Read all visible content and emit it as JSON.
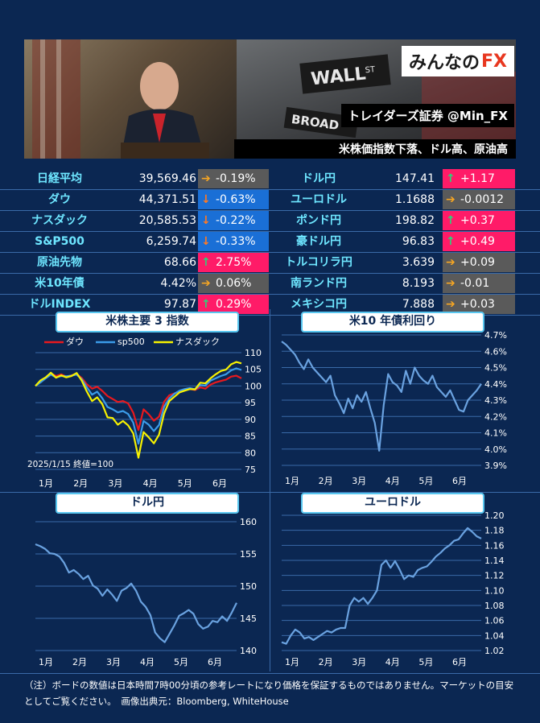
{
  "banner": {
    "logo_text": "みんなの",
    "logo_fx": "FX",
    "handle": "トレイダーズ証券 @Min_FX",
    "headline": "米株価指数下落、ドル高、原油高"
  },
  "board": {
    "left": [
      {
        "name": "日経平均",
        "value": "39,569.46",
        "change": "-0.19%",
        "dir": "flat"
      },
      {
        "name": "ダウ",
        "value": "44,371.51",
        "change": "-0.63%",
        "dir": "down"
      },
      {
        "name": "ナスダック",
        "value": "20,585.53",
        "change": "-0.22%",
        "dir": "down"
      },
      {
        "name": "S&P500",
        "value": "6,259.74",
        "change": "-0.33%",
        "dir": "down"
      },
      {
        "name": "原油先物",
        "value": "68.66",
        "change": "2.75%",
        "dir": "up"
      },
      {
        "name": "米10年債",
        "value": "4.42%",
        "change": "0.06%",
        "dir": "flat"
      },
      {
        "name": "ドルINDEX",
        "value": "97.87",
        "change": "0.29%",
        "dir": "up"
      }
    ],
    "right": [
      {
        "name": "ドル円",
        "value": "147.41",
        "change": "+1.17",
        "dir": "up"
      },
      {
        "name": "ユーロドル",
        "value": "1.1688",
        "change": "-0.0012",
        "dir": "flat"
      },
      {
        "name": "ポンド円",
        "value": "198.82",
        "change": "+0.37",
        "dir": "up"
      },
      {
        "name": "豪ドル円",
        "value": "96.83",
        "change": "+0.49",
        "dir": "up"
      },
      {
        "name": "トルコリラ円",
        "value": "3.639",
        "change": "+0.09",
        "dir": "flat"
      },
      {
        "name": "南ランド円",
        "value": "8.193",
        "change": "-0.01",
        "dir": "flat"
      },
      {
        "name": "メキシコ円",
        "value": "7.888",
        "change": "+0.03",
        "dir": "flat"
      }
    ]
  },
  "chart_data": [
    {
      "type": "line",
      "title": "米株主要 3 指数",
      "note": "2025/1/15 終値=100",
      "xlabels": [
        "1月",
        "2月",
        "3月",
        "4月",
        "5月",
        "6月"
      ],
      "ylim": [
        75,
        110
      ],
      "yticks": [
        75,
        80,
        85,
        90,
        95,
        100,
        105,
        110
      ],
      "legend": "top",
      "series": [
        {
          "name": "ダウ",
          "color": "#e8191e",
          "values": [
            100,
            101.3,
            102.5,
            103.8,
            103,
            103.5,
            102.8,
            103.2,
            103.6,
            102.4,
            100.5,
            99.2,
            99.8,
            98.5,
            97,
            96.1,
            95.2,
            95.5,
            94.8,
            92,
            86.8,
            93,
            91.5,
            89.6,
            90.8,
            95.3,
            97.2,
            97.8,
            98.3,
            98.9,
            99.1,
            98.8,
            99.6,
            99.2,
            100.4,
            101.1,
            101.5,
            101.9,
            102.8,
            103.1,
            102.3
          ]
        },
        {
          "name": "sp500",
          "color": "#3b9be8",
          "values": [
            100,
            101.1,
            102.3,
            103.4,
            102.6,
            103,
            102.9,
            103.1,
            103.4,
            102,
            99.6,
            97.4,
            98.3,
            96.3,
            93.7,
            93,
            92.1,
            92.5,
            91.6,
            89,
            82.7,
            89.5,
            88.4,
            86.5,
            88.3,
            93.8,
            96.3,
            97.7,
            98.6,
            99.1,
            99.4,
            99,
            100.3,
            100.1,
            101.6,
            102.3,
            103,
            103.5,
            104.7,
            105.3,
            104.8
          ]
        },
        {
          "name": "ナスダック",
          "color": "#f7f200",
          "values": [
            100,
            101.7,
            102.6,
            104,
            102.5,
            103.2,
            102.6,
            103,
            103.9,
            101.6,
            98.3,
            95.5,
            96.6,
            94.5,
            90.6,
            90.4,
            88.4,
            89.5,
            88.2,
            85.8,
            78.5,
            86.2,
            84.6,
            82.8,
            85.4,
            91.8,
            95.5,
            96.8,
            98.1,
            98.6,
            99.1,
            99,
            101,
            100.8,
            102.3,
            103.5,
            104.5,
            104.9,
            106.5,
            107.2,
            106.8
          ]
        }
      ]
    },
    {
      "type": "line",
      "title": "米10 年債利回り",
      "xlabels": [
        "1月",
        "2月",
        "3月",
        "4月",
        "5月",
        "6月"
      ],
      "ylim": [
        3.9,
        4.7
      ],
      "yticks": [
        "3.9%",
        "4.0%",
        "4.1%",
        "4.2%",
        "4.3%",
        "4.4%",
        "4.5%",
        "4.6%",
        "4.7%"
      ],
      "series": [
        {
          "name": "",
          "color": "#6aa2e0",
          "values": [
            4.66,
            4.64,
            4.61,
            4.58,
            4.53,
            4.49,
            4.55,
            4.5,
            4.47,
            4.44,
            4.41,
            4.45,
            4.33,
            4.28,
            4.22,
            4.31,
            4.25,
            4.33,
            4.29,
            4.35,
            4.25,
            4.16,
            3.99,
            4.27,
            4.46,
            4.41,
            4.39,
            4.35,
            4.48,
            4.4,
            4.5,
            4.45,
            4.42,
            4.4,
            4.45,
            4.38,
            4.35,
            4.32,
            4.36,
            4.3,
            4.24,
            4.23,
            4.3,
            4.33,
            4.36,
            4.4
          ]
        }
      ]
    },
    {
      "type": "line",
      "title": "ドル円",
      "xlabels": [
        "1月",
        "2月",
        "3月",
        "4月",
        "5月",
        "6月"
      ],
      "ylim": [
        140,
        160
      ],
      "yticks": [
        140,
        145,
        150,
        155,
        160
      ],
      "series": [
        {
          "name": "",
          "color": "#6aa2e0",
          "values": [
            156.5,
            156.2,
            155.8,
            155.1,
            155,
            154.6,
            153.6,
            152.1,
            152.5,
            151.9,
            151.1,
            151.6,
            150.1,
            149.6,
            148.5,
            149.5,
            148.7,
            147.7,
            149.3,
            149.7,
            150.4,
            149.3,
            147.6,
            146.8,
            145.5,
            142.8,
            141.9,
            141.3,
            142.6,
            143.9,
            145.4,
            145.8,
            146.3,
            145.7,
            144.1,
            143.4,
            143.7,
            144.6,
            144.4,
            145.3,
            144.6,
            145.9,
            147.4
          ]
        }
      ]
    },
    {
      "type": "line",
      "title": "ユーロドル",
      "xlabels": [
        "1月",
        "2月",
        "3月",
        "4月",
        "5月",
        "6月"
      ],
      "ylim": [
        1.02,
        1.2
      ],
      "yticks": [
        "1.02",
        "1.04",
        "1.06",
        "1.08",
        "1.10",
        "1.12",
        "1.14",
        "1.16",
        "1.18",
        "1.20"
      ],
      "series": [
        {
          "name": "",
          "color": "#6aa2e0",
          "values": [
            1.031,
            1.029,
            1.04,
            1.048,
            1.044,
            1.036,
            1.038,
            1.034,
            1.038,
            1.042,
            1.046,
            1.044,
            1.048,
            1.05,
            1.05,
            1.08,
            1.09,
            1.085,
            1.09,
            1.082,
            1.09,
            1.1,
            1.134,
            1.14,
            1.13,
            1.139,
            1.128,
            1.115,
            1.12,
            1.118,
            1.127,
            1.13,
            1.132,
            1.138,
            1.145,
            1.15,
            1.156,
            1.16,
            1.166,
            1.168,
            1.176,
            1.183,
            1.178,
            1.172,
            1.169
          ]
        }
      ]
    }
  ],
  "footer": {
    "note": "（注）ボードの数値は日本時間7時00分頃の参考レートになり価格を保証するものではありません。マーケットの目安としてご覧ください。　画像出典元：Bloomberg, WhiteHouse"
  },
  "colors": {
    "background": "#0b2752",
    "up": "#ff1b68",
    "down": "#1a6fd6",
    "flat": "#5a5a5a",
    "label": "#6ee6ff"
  },
  "icons": {
    "up": "↑",
    "down": "↓",
    "flat": "➔"
  }
}
